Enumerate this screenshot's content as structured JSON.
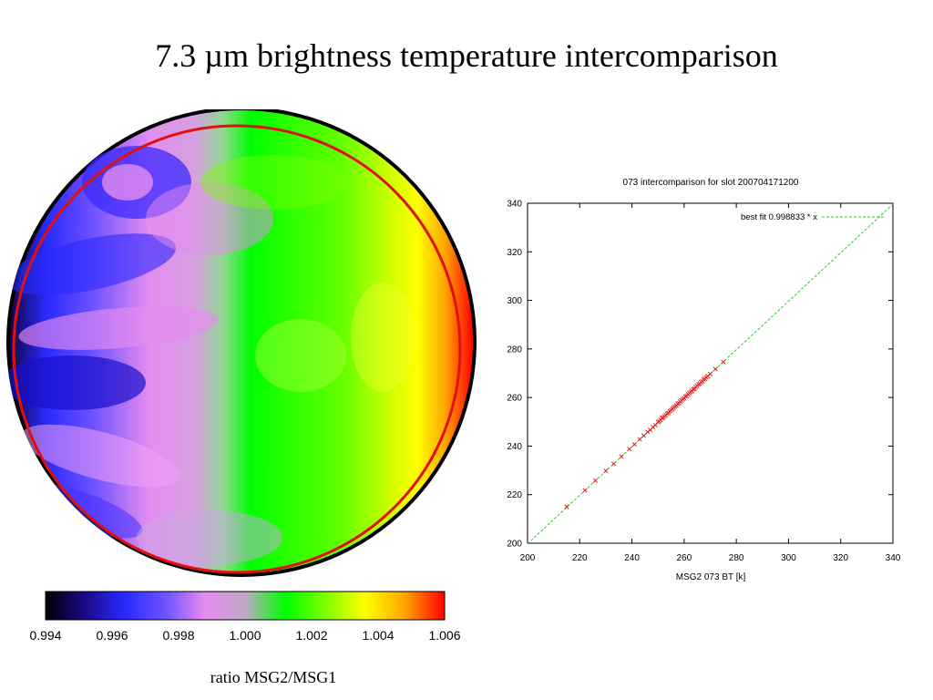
{
  "page_title": "7.3 µm brightness temperature intercomparison",
  "chart_data": [
    {
      "type": "heatmap",
      "subject": "full disk ratio map",
      "colorbar": {
        "min": 0.994,
        "max": 1.006,
        "ticks": [
          "0.994",
          "0.996",
          "0.998",
          "1.000",
          "1.002",
          "1.004",
          "1.006"
        ],
        "colors": [
          "#000000",
          "#1a0a8c",
          "#2a2aff",
          "#6e52ff",
          "#e68cf0",
          "#c0a8c8",
          "#00ff00",
          "#7cff00",
          "#ffff00",
          "#ffa500",
          "#ff0000"
        ]
      },
      "xlabel": "ratio MSG2/MSG1",
      "overlay_circle_color": "#e01010"
    },
    {
      "type": "scatter",
      "title": "073 intercomparison for slot 200704171200",
      "xlabel": "MSG2 073 BT [k]",
      "ylabel": "",
      "xlim": [
        200,
        340
      ],
      "ylim": [
        200,
        340
      ],
      "xticks": [
        "200",
        "220",
        "240",
        "260",
        "280",
        "300",
        "320",
        "340"
      ],
      "yticks": [
        "200",
        "220",
        "240",
        "260",
        "280",
        "300",
        "320",
        "340"
      ],
      "fit": {
        "label": "best fit 0.998833 * x",
        "slope": 0.998833,
        "color": "#22cc22"
      },
      "point_color": "#e02020",
      "points": [
        [
          215,
          215
        ],
        [
          222,
          221.8
        ],
        [
          226,
          225.8
        ],
        [
          230,
          229.8
        ],
        [
          233,
          232.7
        ],
        [
          236,
          235.7
        ],
        [
          239,
          238.8
        ],
        [
          241,
          240.7
        ],
        [
          243,
          242.8
        ],
        [
          244.5,
          244.3
        ],
        [
          246,
          245.8
        ],
        [
          247,
          246.6
        ],
        [
          248,
          247.8
        ],
        [
          249,
          248.6
        ],
        [
          250,
          249.9
        ],
        [
          250.5,
          250.2
        ],
        [
          251,
          250.8
        ],
        [
          251.5,
          251.6
        ],
        [
          252,
          251.7
        ],
        [
          252.5,
          252.3
        ],
        [
          253,
          252.8
        ],
        [
          253.5,
          253.4
        ],
        [
          254,
          253.7
        ],
        [
          254.5,
          254.4
        ],
        [
          255,
          254.8
        ],
        [
          255.5,
          255.3
        ],
        [
          256,
          255.8
        ],
        [
          256.5,
          256.3
        ],
        [
          257,
          256.7
        ],
        [
          257.5,
          257.4
        ],
        [
          258,
          257.7
        ],
        [
          258.5,
          258.3
        ],
        [
          259,
          258.8
        ],
        [
          259.5,
          259.3
        ],
        [
          260,
          259.7
        ],
        [
          260.5,
          260.4
        ],
        [
          261,
          260.7
        ],
        [
          261.5,
          261.3
        ],
        [
          262,
          261.8
        ],
        [
          262.5,
          262.3
        ],
        [
          263,
          262.7
        ],
        [
          263.5,
          263.4
        ],
        [
          264,
          263.6
        ],
        [
          264.5,
          264.3
        ],
        [
          265,
          264.8
        ],
        [
          265.5,
          265.4
        ],
        [
          266,
          265.7
        ],
        [
          266.5,
          266.3
        ],
        [
          267,
          266.7
        ],
        [
          267.5,
          267.4
        ],
        [
          268,
          267.7
        ],
        [
          268.5,
          268.3
        ],
        [
          269,
          268.8
        ],
        [
          270,
          269.7
        ],
        [
          272,
          271.7
        ],
        [
          275,
          274.6
        ]
      ]
    }
  ]
}
